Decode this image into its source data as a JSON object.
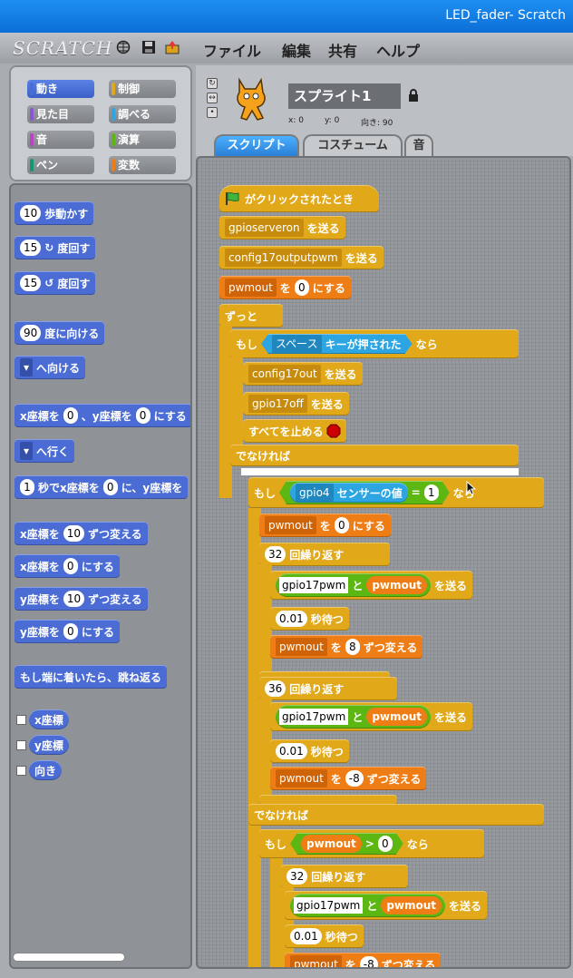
{
  "window": {
    "title": "LED_fader- Scratch"
  },
  "menu": {
    "logo": "SCRATCH",
    "items": [
      "ファイル",
      "編集",
      "共有",
      "ヘルプ"
    ]
  },
  "categories": [
    {
      "label": "動き",
      "color": "#4a6cd4",
      "selected": true
    },
    {
      "label": "制御",
      "color": "#e1a91a"
    },
    {
      "label": "見た目",
      "color": "#8a55d7"
    },
    {
      "label": "調べる",
      "color": "#2ca5e2"
    },
    {
      "label": "音",
      "color": "#bb42c3"
    },
    {
      "label": "演算",
      "color": "#5cb712"
    },
    {
      "label": "ペン",
      "color": "#0e9a6c"
    },
    {
      "label": "変数",
      "color": "#ee7d16"
    }
  ],
  "palette": {
    "move_steps": {
      "n": "10",
      "t": "歩動かす"
    },
    "turn_cw": {
      "n": "15",
      "t": "度回す"
    },
    "turn_ccw": {
      "n": "15",
      "t": "度回す"
    },
    "point_dir": {
      "n": "90",
      "t": "度に向ける"
    },
    "point_towards": {
      "t": "へ向ける"
    },
    "goto_xy": {
      "a": "x座標を",
      "x": "0",
      "b": "、y座標を",
      "y": "0",
      "c": "にする"
    },
    "goto": {
      "t": "へ行く"
    },
    "glide": {
      "n": "1",
      "a": "秒でx座標を",
      "x": "0",
      "b": "に、y座標を"
    },
    "change_x": {
      "a": "x座標を",
      "n": "10",
      "b": "ずつ変える"
    },
    "set_x": {
      "a": "x座標を",
      "n": "0",
      "b": "にする"
    },
    "change_y": {
      "a": "y座標を",
      "n": "10",
      "b": "ずつ変える"
    },
    "set_y": {
      "a": "y座標を",
      "n": "0",
      "b": "にする"
    },
    "bounce": "もし端に着いたら、跳ね返る",
    "reporters": [
      "x座標",
      "y座標",
      "向き"
    ]
  },
  "sprite": {
    "name": "スプライト1",
    "x_label": "x: 0",
    "y_label": "y: 0",
    "dir_label": "向き: 90"
  },
  "tabs": [
    "スクリプト",
    "コスチューム",
    "音"
  ],
  "script": {
    "hat": "がクリックされたとき",
    "b1": {
      "v": "gpioserveron",
      "t": "を送る"
    },
    "b2": {
      "v": "config17outputpwm",
      "t": "を送る"
    },
    "b3": {
      "v": "pwmout",
      "a": "を",
      "n": "0",
      "b": "にする"
    },
    "forever": "ずっと",
    "if1": {
      "a": "もし",
      "key": "スペース",
      "k": "キーが押された",
      "b": "なら"
    },
    "b4": {
      "v": "config17out",
      "t": "を送る"
    },
    "b5": {
      "v": "gpio17off",
      "t": "を送る"
    },
    "stop": "すべてを止める",
    "else1": "でなければ",
    "if2": {
      "a": "もし",
      "s": "gpio4",
      "st": "センサーの値",
      "eq": "=",
      "n": "1",
      "b": "なら"
    },
    "b6": {
      "v": "pwmout",
      "a": "を",
      "n": "0",
      "b": "にする"
    },
    "rep1": {
      "n": "32",
      "t": "回繰り返す"
    },
    "send1": {
      "s": "gpio17pwm",
      "and": "と",
      "v": "pwmout",
      "t": "を送る"
    },
    "wait1": {
      "n": "0.01",
      "t": "秒待つ"
    },
    "chg1": {
      "v": "pwmout",
      "a": "を",
      "n": "8",
      "b": "ずつ変える"
    },
    "rep2": {
      "n": "36",
      "t": "回繰り返す"
    },
    "send2": {
      "s": "gpio17pwm",
      "and": "と",
      "v": "pwmout",
      "t": "を送る"
    },
    "wait2": {
      "n": "0.01",
      "t": "秒待つ"
    },
    "chg2": {
      "v": "pwmout",
      "a": "を",
      "n": "-8",
      "b": "ずつ変える"
    },
    "else2": "でなければ",
    "if3": {
      "a": "もし",
      "v": "pwmout",
      "gt": ">",
      "n": "0",
      "b": "なら"
    },
    "rep3": {
      "n": "32",
      "t": "回繰り返す"
    },
    "send3": {
      "s": "gpio17pwm",
      "and": "と",
      "v": "pwmout",
      "t": "を送る"
    },
    "wait3": {
      "n": "0.01",
      "t": "秒待つ"
    },
    "chg3": {
      "v": "pwmout",
      "a": "を",
      "n": "-8",
      "b": "ずつ変える"
    }
  }
}
